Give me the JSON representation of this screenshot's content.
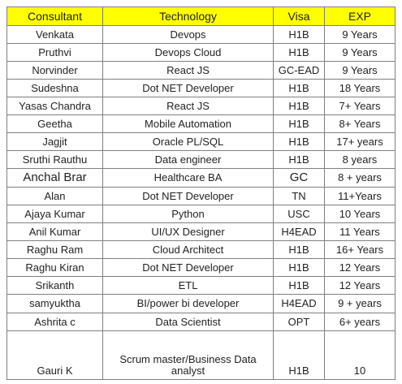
{
  "table": {
    "headers": [
      "Consultant",
      "Technology",
      "Visa",
      "EXP"
    ],
    "rows": [
      [
        "Venkata",
        "Devops",
        "H1B",
        "9 Years"
      ],
      [
        "Pruthvi",
        "Devops Cloud",
        "H1B",
        "9 Years"
      ],
      [
        "Norvinder",
        "React JS",
        "GC-EAD",
        "9 Years"
      ],
      [
        "Sudeshna",
        "Dot NET Developer",
        "H1B",
        "18 Years"
      ],
      [
        "Yasas Chandra",
        "React JS",
        "H1B",
        "7+ Years"
      ],
      [
        "Geetha",
        "Mobile Automation",
        "H1B",
        "8+ Years"
      ],
      [
        "Jagjit",
        "Oracle PL/SQL",
        "H1B",
        "17+ years"
      ],
      [
        "Sruthi Rauthu",
        "Data engineer",
        "H1B",
        "8 years"
      ],
      [
        "Anchal Brar",
        "Healthcare BA",
        "GC",
        "8 + years"
      ],
      [
        "Alan",
        "Dot NET Developer",
        "TN",
        "11+Years"
      ],
      [
        "Ajaya Kumar",
        "Python",
        "USC",
        "10 Years"
      ],
      [
        "Anil Kumar",
        "UI/UX Designer",
        "H4EAD",
        "11 Years"
      ],
      [
        "Raghu Ram",
        "Cloud Architect",
        "H1B",
        "16+ Years"
      ],
      [
        "Raghu Kiran",
        "Dot NET Developer",
        "H1B",
        "12 Years"
      ],
      [
        "Srikanth",
        "ETL",
        "H1B",
        "12 Years"
      ],
      [
        "samyuktha",
        "BI/power bi developer",
        "H4EAD",
        "9 + years"
      ],
      [
        "Ashrita c",
        "Data Scientist",
        "OPT",
        "6+ years"
      ],
      [
        "Gauri K",
        "Scrum master/Business Data analyst",
        "H1B",
        "10"
      ]
    ]
  },
  "colors": {
    "header_background": "#ffff00",
    "border": "#7f7f7f",
    "text": "#222222"
  }
}
